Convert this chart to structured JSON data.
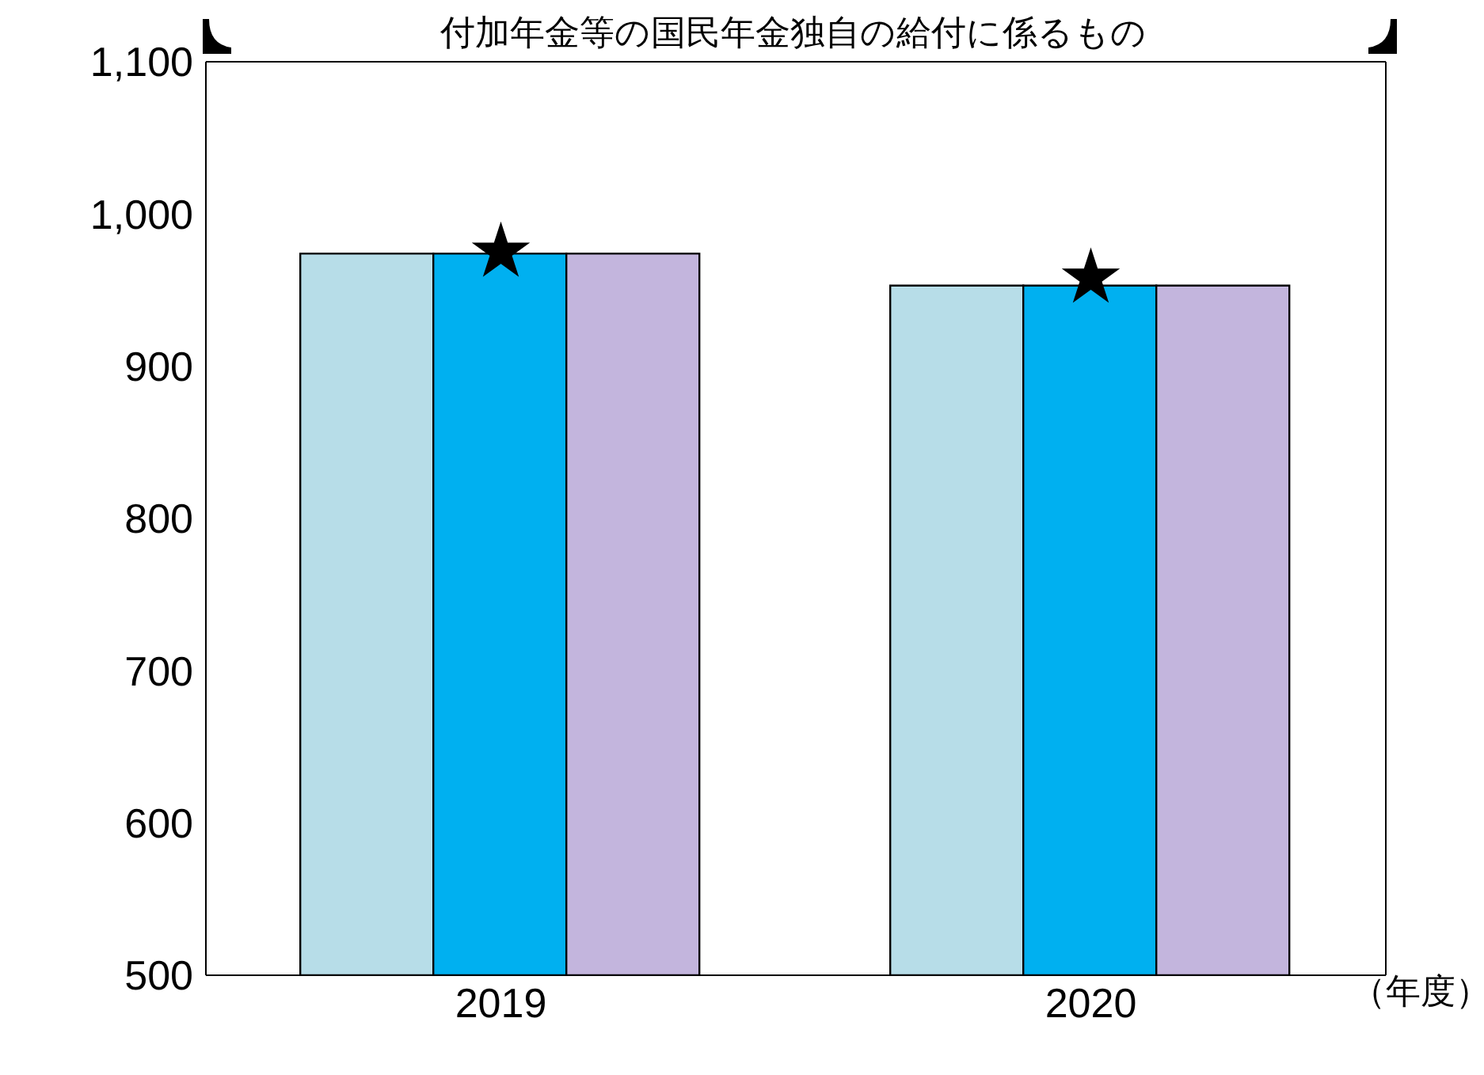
{
  "chart_data": {
    "type": "bar",
    "title": "付加年金等の国民年金独自の給付に係るもの",
    "xlabel": "（年度）",
    "categories": [
      "2019",
      "2020"
    ],
    "series": [
      {
        "color": "#b7dde8",
        "values": [
          974,
          953
        ]
      },
      {
        "color": "#00b0f0",
        "values": [
          974,
          953
        ]
      },
      {
        "color": "#c3b5dd",
        "values": [
          974,
          953
        ]
      },
      {
        "type": "scatter",
        "marker": "star",
        "color": "#000000",
        "values": [
          975,
          958
        ]
      }
    ],
    "ylim": [
      500,
      1100
    ],
    "yticks": [
      500,
      600,
      700,
      800,
      900,
      {
        "value": 1000,
        "label": "1,000"
      },
      {
        "value": 1100,
        "label": "1,100"
      }
    ],
    "grid": false,
    "legend": false
  }
}
